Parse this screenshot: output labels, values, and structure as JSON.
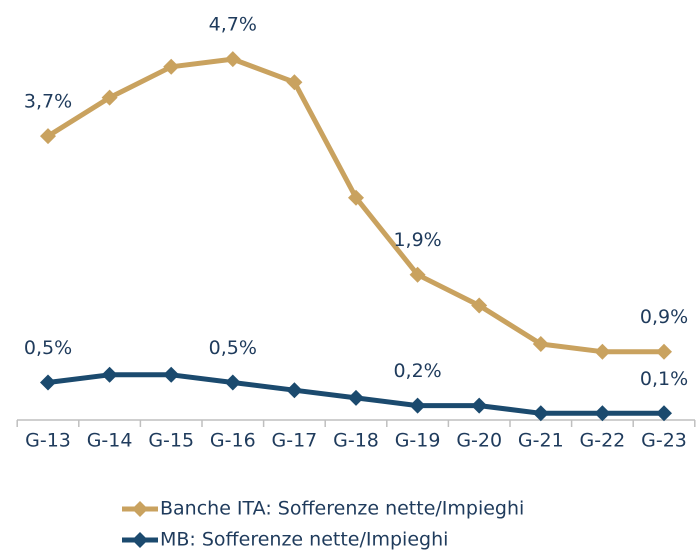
{
  "chart_data": {
    "type": "line",
    "categories": [
      "G-13",
      "G-14",
      "G-15",
      "G-16",
      "G-17",
      "G-18",
      "G-19",
      "G-20",
      "G-21",
      "G-22",
      "G-23"
    ],
    "series": [
      {
        "name": "Banche ITA: Sofferenze nette/Impieghi",
        "color": "#c9a25f",
        "values": [
          3.7,
          4.2,
          4.6,
          4.7,
          4.4,
          2.9,
          1.9,
          1.5,
          1.0,
          0.9,
          0.9
        ],
        "value_labels": [
          "3,7%",
          null,
          null,
          "4,7%",
          null,
          null,
          "1,9%",
          null,
          null,
          null,
          "0,9%"
        ]
      },
      {
        "name": "MB: Sofferenze nette/Impieghi",
        "color": "#1b4a6e",
        "values": [
          0.5,
          0.6,
          0.6,
          0.5,
          0.4,
          0.3,
          0.2,
          0.2,
          0.1,
          0.1,
          0.1
        ],
        "value_labels": [
          "0,5%",
          null,
          null,
          "0,5%",
          null,
          null,
          "0,2%",
          null,
          null,
          null,
          "0,1%"
        ]
      }
    ],
    "ylim": [
      0,
      5
    ]
  }
}
